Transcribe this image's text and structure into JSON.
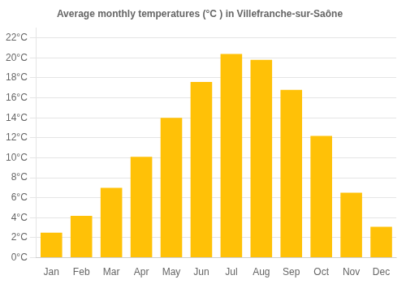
{
  "chart_data": {
    "type": "bar",
    "title": "Average monthly temperatures (°C ) in Villefranche-sur-Saône",
    "categories": [
      "Jan",
      "Feb",
      "Mar",
      "Apr",
      "May",
      "Jun",
      "Jul",
      "Aug",
      "Sep",
      "Oct",
      "Nov",
      "Dec"
    ],
    "values": [
      2.5,
      4.2,
      7.0,
      10.1,
      14.0,
      17.6,
      20.4,
      19.8,
      16.8,
      12.2,
      6.5,
      3.1
    ],
    "color": "#FFC107",
    "ylim": [
      0,
      23
    ],
    "yticks": [
      {
        "value": 0,
        "label": "0°C"
      },
      {
        "value": 2,
        "label": "2°C"
      },
      {
        "value": 4,
        "label": "4°C"
      },
      {
        "value": 6,
        "label": "6°C"
      },
      {
        "value": 8,
        "label": "8°C"
      },
      {
        "value": 10,
        "label": "10°C"
      },
      {
        "value": 12,
        "label": "12°C"
      },
      {
        "value": 14,
        "label": "14°C"
      },
      {
        "value": 16,
        "label": "16°C"
      },
      {
        "value": 18,
        "label": "18°C"
      },
      {
        "value": 20,
        "label": "20°C"
      },
      {
        "value": 22,
        "label": "22°C"
      }
    ],
    "grid": true
  }
}
